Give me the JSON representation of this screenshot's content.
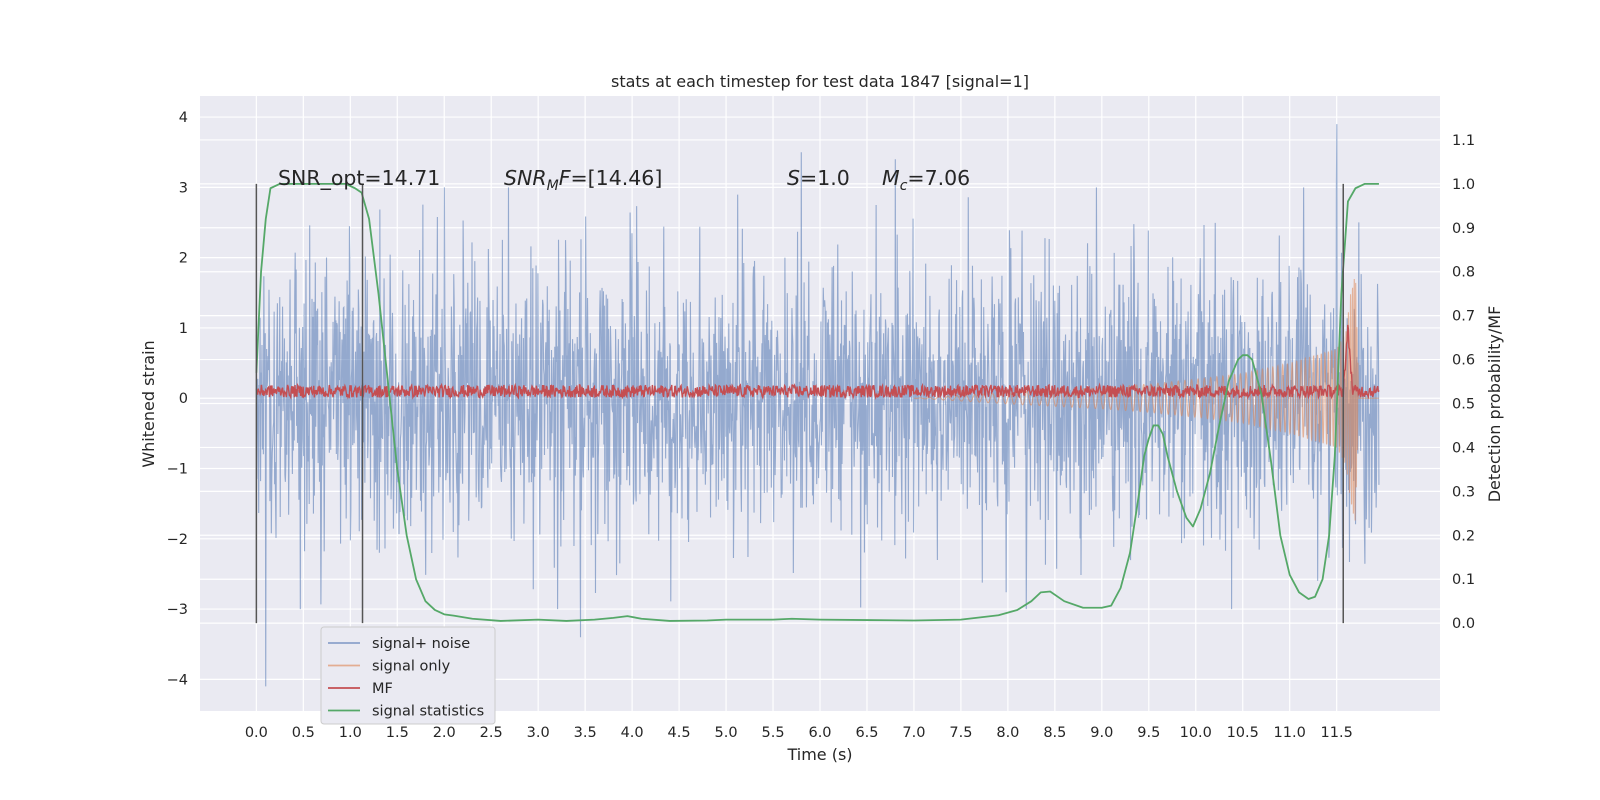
{
  "chart_data": {
    "type": "line",
    "title": "stats at each timestep for test data 1847 [signal=1]",
    "xlabel": "Time (s)",
    "ylabel_left": "Whitened strain",
    "ylabel_right": "Detection probability/MF",
    "xlim": [
      -0.6,
      12.6
    ],
    "ylim_left": [
      -4.45,
      4.3
    ],
    "ylim_right": [
      -0.2,
      1.2
    ],
    "x_ticks": [
      "0.0",
      "0.5",
      "1.0",
      "1.5",
      "2.0",
      "2.5",
      "3.0",
      "3.5",
      "4.0",
      "4.5",
      "5.0",
      "5.5",
      "6.0",
      "6.5",
      "7.0",
      "7.5",
      "8.0",
      "8.5",
      "9.0",
      "9.5",
      "10.0",
      "10.5",
      "11.0",
      "11.5"
    ],
    "y_ticks_left": [
      "4",
      "3",
      "2",
      "1",
      "0",
      "−1",
      "−2",
      "−3",
      "−4"
    ],
    "y_ticks_right": [
      "1.1",
      "1.0",
      "0.9",
      "0.8",
      "0.7",
      "0.6",
      "0.5",
      "0.4",
      "0.3",
      "0.2",
      "0.1",
      "0.0"
    ],
    "grid": true,
    "legend_position": "lower-left",
    "annotations": [
      {
        "label": "SNR_opt=14.71"
      },
      {
        "label": "SNR_MF=[14.46]",
        "parts": [
          {
            "text": "SNR",
            "style": "italic"
          },
          {
            "text": "M",
            "style": "italic-sub"
          },
          {
            "text": "F",
            "style": "italic"
          },
          {
            "text": "=[14.46]",
            "style": "normal"
          }
        ]
      },
      {
        "label": "S=1.0",
        "parts": [
          {
            "text": "S",
            "style": "italic"
          },
          {
            "text": "=1.0",
            "style": "normal"
          }
        ]
      },
      {
        "label": "M_c=7.06",
        "parts": [
          {
            "text": "M",
            "style": "italic"
          },
          {
            "text": "c",
            "style": "italic-sub"
          },
          {
            "text": "=7.06",
            "style": "normal"
          }
        ]
      }
    ],
    "vertical_markers": [
      0.0,
      1.13,
      11.57
    ],
    "series": [
      {
        "name": "signal+ noise",
        "color": "#4c72b0",
        "kind": "noise",
        "axis": "left",
        "x_range": [
          0.0,
          11.95
        ],
        "sigma": 1.0,
        "peaks": [
          [
            0.1,
            -4.1
          ],
          [
            3.45,
            -3.4
          ],
          [
            11.5,
            3.9
          ],
          [
            6.8,
            3.4
          ],
          [
            5.8,
            3.5
          ],
          [
            2.0,
            3.0
          ]
        ]
      },
      {
        "name": "signal only",
        "color": "#dd8452",
        "kind": "chirp",
        "axis": "left",
        "t_c": 11.73,
        "x_range": [
          7.0,
          11.95
        ],
        "envelope": [
          [
            7.0,
            0.0
          ],
          [
            8.0,
            0.08
          ],
          [
            9.0,
            0.15
          ],
          [
            9.5,
            0.2
          ],
          [
            10.0,
            0.27
          ],
          [
            10.5,
            0.35
          ],
          [
            11.0,
            0.5
          ],
          [
            11.5,
            0.7
          ],
          [
            11.6,
            0.95
          ],
          [
            11.65,
            1.5
          ],
          [
            11.7,
            1.8
          ],
          [
            11.73,
            0.3
          ]
        ]
      },
      {
        "name": "MF",
        "color": "#c44e52",
        "kind": "mf",
        "axis": "left",
        "x_range": [
          0.0,
          11.95
        ],
        "baseline": 0.1,
        "spike": [
          11.62,
          1.0
        ]
      },
      {
        "name": "signal statistics",
        "color": "#55a868",
        "axis": "right",
        "x": [
          0.0,
          0.05,
          0.1,
          0.15,
          0.25,
          0.4,
          0.6,
          0.8,
          0.95,
          1.05,
          1.12,
          1.2,
          1.3,
          1.4,
          1.5,
          1.6,
          1.7,
          1.8,
          1.9,
          2.0,
          2.1,
          2.3,
          2.6,
          3.0,
          3.3,
          3.6,
          3.8,
          3.95,
          4.1,
          4.4,
          4.8,
          5.0,
          5.5,
          5.7,
          6.0,
          6.5,
          7.0,
          7.5,
          7.9,
          8.1,
          8.25,
          8.35,
          8.45,
          8.6,
          8.8,
          9.0,
          9.1,
          9.2,
          9.3,
          9.4,
          9.45,
          9.5,
          9.55,
          9.6,
          9.65,
          9.7,
          9.8,
          9.9,
          9.97,
          10.05,
          10.15,
          10.25,
          10.35,
          10.45,
          10.5,
          10.55,
          10.6,
          10.7,
          10.8,
          10.9,
          11.0,
          11.1,
          11.2,
          11.27,
          11.35,
          11.42,
          11.48,
          11.55,
          11.62,
          11.7,
          11.8,
          11.95
        ],
        "y": [
          0.57,
          0.8,
          0.92,
          0.99,
          1.0,
          1.0,
          1.0,
          1.0,
          1.0,
          0.99,
          0.98,
          0.92,
          0.75,
          0.55,
          0.35,
          0.2,
          0.1,
          0.05,
          0.03,
          0.02,
          0.017,
          0.01,
          0.005,
          0.008,
          0.005,
          0.008,
          0.012,
          0.016,
          0.01,
          0.005,
          0.006,
          0.008,
          0.008,
          0.01,
          0.008,
          0.007,
          0.006,
          0.008,
          0.018,
          0.03,
          0.05,
          0.07,
          0.072,
          0.05,
          0.035,
          0.035,
          0.04,
          0.08,
          0.16,
          0.3,
          0.38,
          0.42,
          0.45,
          0.45,
          0.43,
          0.38,
          0.3,
          0.24,
          0.22,
          0.26,
          0.34,
          0.45,
          0.55,
          0.6,
          0.61,
          0.61,
          0.6,
          0.52,
          0.37,
          0.2,
          0.11,
          0.07,
          0.055,
          0.06,
          0.1,
          0.2,
          0.38,
          0.75,
          0.96,
          0.99,
          1.0,
          1.0
        ]
      }
    ]
  }
}
